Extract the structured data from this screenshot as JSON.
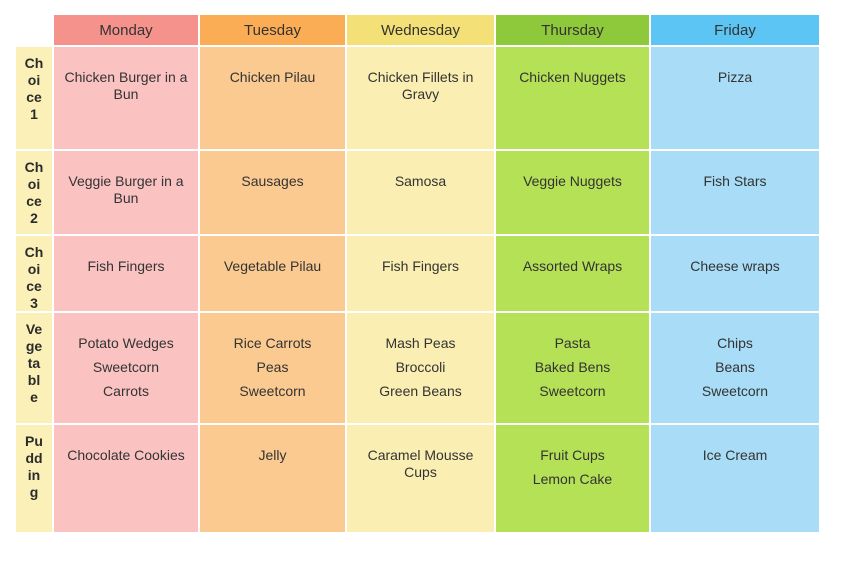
{
  "table": {
    "corner_label": "",
    "days": [
      {
        "label": "Monday",
        "header_bg": "#f6928c",
        "body_bg": "#fac3c2"
      },
      {
        "label": "Tuesday",
        "header_bg": "#fbad56",
        "body_bg": "#fbca90"
      },
      {
        "label": "Wednesday",
        "header_bg": "#f3e077",
        "body_bg": "#faeeb2"
      },
      {
        "label": "Thursday",
        "header_bg": "#8ec83b",
        "body_bg": "#b5e156"
      },
      {
        "label": "Friday",
        "header_bg": "#5cc5f3",
        "body_bg": "#a9dcf7"
      }
    ],
    "label_col_bg": "#fbf1b8",
    "text_color": "#333333",
    "rows": [
      {
        "label": "Choice 1",
        "cells": [
          [
            "Chicken Burger in a Bun"
          ],
          [
            "Chicken Pilau"
          ],
          [
            "Chicken Fillets in Gravy"
          ],
          [
            "Chicken Nuggets"
          ],
          [
            "Pizza"
          ]
        ]
      },
      {
        "label": "Choice 2",
        "cells": [
          [
            "Veggie Burger in a Bun"
          ],
          [
            "Sausages"
          ],
          [
            "Samosa"
          ],
          [
            "Veggie Nuggets"
          ],
          [
            "Fish Stars"
          ]
        ]
      },
      {
        "label": "Choice 3",
        "cells": [
          [
            "Fish Fingers"
          ],
          [
            "Vegetable Pilau"
          ],
          [
            "Fish Fingers"
          ],
          [
            "Assorted Wraps"
          ],
          [
            "Cheese wraps"
          ]
        ]
      },
      {
        "label": "Vegetable",
        "cells": [
          [
            "Potato Wedges",
            "Sweetcorn",
            "Carrots"
          ],
          [
            "Rice Carrots",
            "Peas",
            "Sweetcorn"
          ],
          [
            "Mash Peas",
            "Broccoli",
            "Green Beans"
          ],
          [
            "Pasta",
            "Baked Bens",
            "Sweetcorn"
          ],
          [
            "Chips",
            "Beans",
            "Sweetcorn"
          ]
        ]
      },
      {
        "label": "Pudding",
        "cells": [
          [
            "Chocolate Cookies"
          ],
          [
            "Jelly"
          ],
          [
            "Caramel Mousse Cups"
          ],
          [
            "Fruit Cups",
            "Lemon Cake"
          ],
          [
            "Ice Cream"
          ]
        ]
      }
    ]
  }
}
